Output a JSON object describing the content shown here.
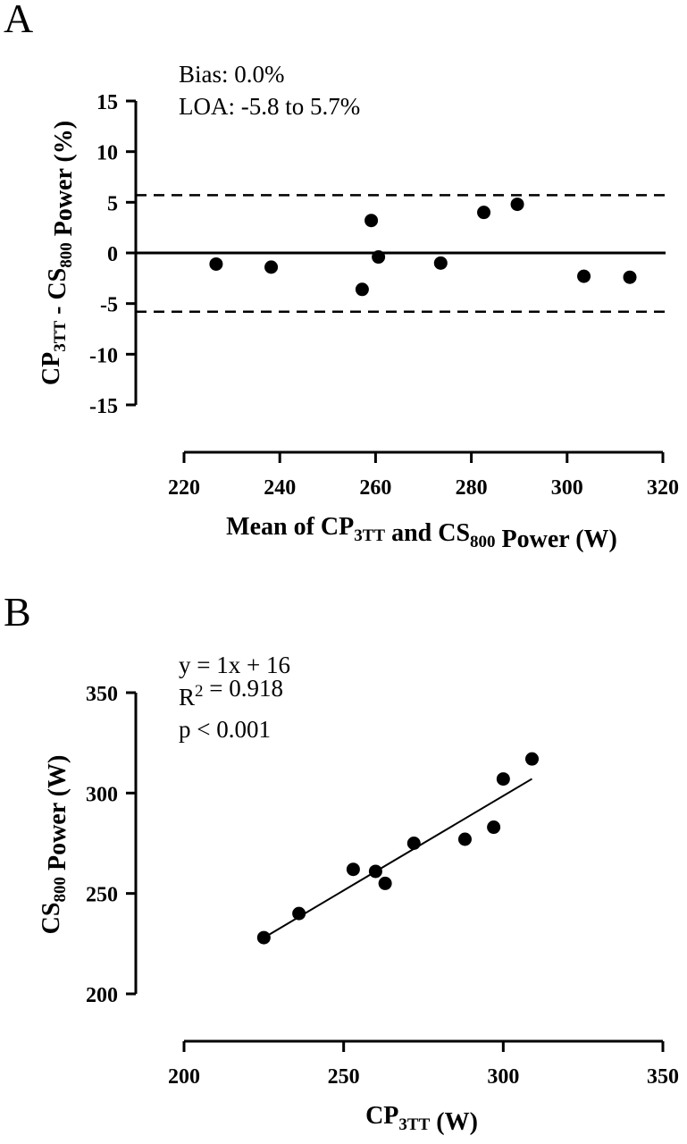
{
  "chart_data": [
    {
      "panel_label": "A",
      "type": "scatter",
      "annotations": [
        "Bias: 0.0%",
        "LOA: -5.8 to 5.7%"
      ],
      "ylabel": {
        "parts": [
          [
            "CP",
            ""
          ],
          [
            "3TT",
            "sub"
          ],
          [
            " - CS",
            ""
          ],
          [
            "800",
            "sub"
          ],
          [
            " Power (%)",
            ""
          ]
        ]
      },
      "xlabel": {
        "parts": [
          [
            "Mean of CP",
            ""
          ],
          [
            "3TT",
            "sub"
          ],
          [
            " and CS",
            ""
          ],
          [
            "800",
            "sub"
          ],
          [
            " Power (W)",
            ""
          ]
        ]
      },
      "xlim": [
        220,
        320
      ],
      "ylim": [
        -15,
        15
      ],
      "xticks": [
        220,
        240,
        260,
        280,
        300,
        320
      ],
      "yticks": [
        15,
        10,
        5,
        0,
        -5,
        -10,
        -15
      ],
      "reference_lines": [
        {
          "y": 5.7,
          "style": "dashed"
        },
        {
          "y": 0.0,
          "style": "solid"
        },
        {
          "y": -5.8,
          "style": "dashed"
        }
      ],
      "x": [
        226.7,
        238.2,
        257.2,
        259.1,
        260.6,
        273.6,
        282.6,
        289.6,
        303.5,
        313.1
      ],
      "y": [
        -1.1,
        -1.4,
        -3.6,
        3.2,
        -0.4,
        -1.0,
        4.0,
        4.8,
        -2.3,
        -2.4
      ]
    },
    {
      "panel_label": "B",
      "type": "scatter",
      "annotations": [
        {
          "parts": [
            [
              "y = 1x + 16",
              ""
            ]
          ]
        },
        {
          "parts": [
            [
              "R",
              ""
            ],
            [
              "2",
              "sup"
            ],
            [
              " = 0.918",
              ""
            ]
          ]
        },
        {
          "parts": [
            [
              "p < 0.001",
              ""
            ]
          ]
        }
      ],
      "ylabel": {
        "parts": [
          [
            "CS",
            ""
          ],
          [
            "800",
            "sub"
          ],
          [
            " Power (W)",
            ""
          ]
        ]
      },
      "xlabel": {
        "parts": [
          [
            "CP",
            ""
          ],
          [
            "3TT",
            "sub"
          ],
          [
            " (W)",
            ""
          ]
        ]
      },
      "xlim": [
        200,
        350
      ],
      "ylim": [
        200,
        350
      ],
      "xticks": [
        200,
        250,
        300,
        350
      ],
      "yticks": [
        350,
        300,
        250,
        200
      ],
      "fit_line": {
        "slope": 0.942,
        "intercept": 16,
        "x_range": [
          225,
          309
        ]
      },
      "x": [
        225,
        236,
        253,
        260,
        263,
        272,
        288,
        297,
        300,
        309
      ],
      "y": [
        228,
        240,
        262,
        261,
        255,
        275,
        277,
        283,
        307,
        317
      ]
    }
  ]
}
